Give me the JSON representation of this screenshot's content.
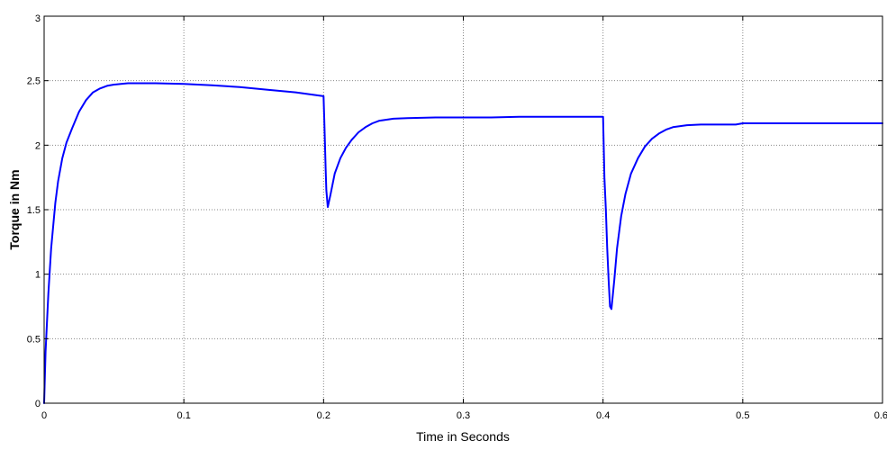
{
  "chart_data": {
    "type": "line",
    "title": "",
    "xlabel": "Time in Seconds",
    "ylabel": "Torque in Nm",
    "xlim": [
      0,
      0.6
    ],
    "ylim": [
      0,
      3
    ],
    "xticks": [
      0,
      0.1,
      0.2,
      0.3,
      0.4,
      0.5,
      0.6
    ],
    "xtick_labels": [
      "0",
      "0.1",
      "0.2",
      "0.3",
      "0.4",
      "0.5",
      "0.6"
    ],
    "yticks": [
      0,
      0.5,
      1,
      1.5,
      2,
      2.5,
      3
    ],
    "ytick_labels": [
      "0",
      "0.5",
      "1",
      "1.5",
      "2",
      "2.5",
      "3"
    ],
    "grid": true,
    "legend": "none",
    "colors": {
      "series": "#0000ff",
      "grid": "#888888",
      "axes": "#000000",
      "background": "#ffffff"
    },
    "series": [
      {
        "x": [
          0,
          0.001,
          0.003,
          0.005,
          0.008,
          0.01,
          0.013,
          0.016,
          0.02,
          0.025,
          0.03,
          0.035,
          0.04,
          0.045,
          0.05,
          0.055,
          0.06,
          0.07,
          0.08,
          0.1,
          0.12,
          0.14,
          0.16,
          0.18,
          0.2,
          0.2005,
          0.201,
          0.2015,
          0.202,
          0.203,
          0.205,
          0.208,
          0.212,
          0.216,
          0.22,
          0.225,
          0.23,
          0.235,
          0.24,
          0.25,
          0.26,
          0.28,
          0.3,
          0.32,
          0.34,
          0.36,
          0.38,
          0.4,
          0.4005,
          0.401,
          0.402,
          0.403,
          0.404,
          0.405,
          0.406,
          0.408,
          0.41,
          0.413,
          0.416,
          0.42,
          0.425,
          0.43,
          0.435,
          0.44,
          0.445,
          0.45,
          0.46,
          0.47,
          0.48,
          0.49,
          0.495,
          0.5,
          0.52,
          0.54,
          0.56,
          0.58,
          0.6
        ],
        "y": [
          0,
          0.4,
          0.85,
          1.2,
          1.55,
          1.72,
          1.9,
          2.02,
          2.13,
          2.26,
          2.35,
          2.41,
          2.44,
          2.46,
          2.47,
          2.475,
          2.48,
          2.48,
          2.48,
          2.475,
          2.465,
          2.45,
          2.43,
          2.41,
          2.38,
          2.2,
          2.0,
          1.8,
          1.65,
          1.52,
          1.62,
          1.78,
          1.9,
          1.98,
          2.04,
          2.1,
          2.14,
          2.17,
          2.19,
          2.205,
          2.21,
          2.215,
          2.215,
          2.215,
          2.22,
          2.22,
          2.22,
          2.22,
          2.0,
          1.75,
          1.5,
          1.2,
          0.95,
          0.75,
          0.73,
          0.95,
          1.2,
          1.45,
          1.62,
          1.78,
          1.9,
          1.99,
          2.05,
          2.09,
          2.12,
          2.14,
          2.155,
          2.16,
          2.16,
          2.16,
          2.16,
          2.17,
          2.17,
          2.17,
          2.17,
          2.17,
          2.17
        ]
      }
    ]
  }
}
